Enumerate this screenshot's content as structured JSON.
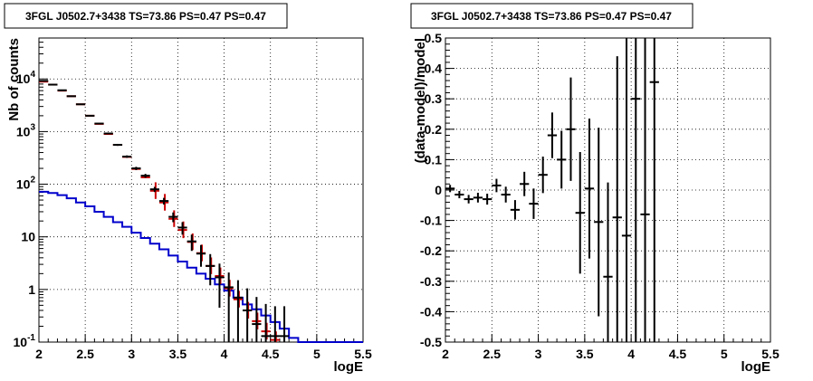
{
  "chart_data": [
    {
      "type": "line",
      "title": "3FGL J0502.7+3438 TS=73.86 PS=0.47 PS=0.47",
      "xlabel": "logE",
      "ylabel": "Nb of counts",
      "xlim": [
        2,
        5.5
      ],
      "ylim": [
        0.1,
        60000
      ],
      "yscale": "log",
      "grid": true,
      "x_ticks": [
        "2",
        "2.5",
        "3",
        "3.5",
        "4",
        "4.5",
        "5",
        "5.5"
      ],
      "y_ticks": [
        "10^-1",
        "1",
        "10",
        "10^2",
        "10^3",
        "10^4"
      ],
      "colors": {
        "data": "#000000",
        "model": "#cc0000",
        "background": "#0000cc"
      },
      "series": [
        {
          "x": [
            2.05,
            2.15,
            2.25,
            2.35,
            2.45,
            2.55,
            2.65,
            2.75,
            2.85,
            2.95,
            3.05,
            3.15,
            3.25,
            3.35,
            3.45,
            3.55,
            3.65,
            3.75,
            3.85,
            3.95,
            4.05,
            4.15,
            4.25,
            4.35,
            4.45,
            4.55,
            4.65
          ],
          "values": [
            9200,
            7800,
            6100,
            4700,
            3300,
            2000,
            1420,
            920,
            560,
            335,
            200,
            145,
            80,
            48,
            24,
            15,
            8.2,
            4.8,
            2.8,
            1.7,
            1.1,
            0.7,
            0.4,
            0.22,
            0.13,
            0.13,
            0.13
          ],
          "yerr_low": [
            100,
            90,
            80,
            70,
            57,
            45,
            38,
            30,
            24,
            18,
            14,
            12,
            9,
            7,
            5,
            4,
            2.8,
            2.1,
            1.6,
            1.25,
            1.0,
            0.7,
            0.4,
            0.22,
            0.13,
            0.13,
            0.13
          ],
          "yerr_high": [
            100,
            90,
            80,
            70,
            57,
            45,
            38,
            30,
            24,
            18,
            14,
            12,
            9,
            7,
            5,
            4,
            2.8,
            2.2,
            1.9,
            1.4,
            1.0,
            0.8,
            0.65,
            0.5,
            0.4,
            0.35,
            0.35
          ]
        },
        {
          "x": [
            2.05,
            2.15,
            2.25,
            2.35,
            2.45,
            2.55,
            2.65,
            2.75,
            2.85,
            2.95,
            3.05,
            3.15,
            3.25,
            3.35,
            3.45,
            3.55,
            3.65,
            3.75,
            3.85,
            3.95,
            4.05,
            4.15,
            4.25,
            4.35,
            4.45,
            4.55,
            4.65
          ],
          "values": [
            8900,
            7800,
            6000,
            4700,
            3300,
            2000,
            1400,
            900,
            560,
            330,
            195,
            135,
            75,
            45,
            22,
            13.5,
            8.0,
            4.9,
            2.8,
            1.8,
            1.05,
            0.65,
            0.4,
            0.25,
            0.16,
            0.11,
            0.08
          ]
        },
        {
          "x": [
            2.0,
            2.1,
            2.2,
            2.3,
            2.4,
            2.5,
            2.6,
            2.7,
            2.8,
            2.9,
            3.0,
            3.1,
            3.2,
            3.3,
            3.4,
            3.5,
            3.6,
            3.7,
            3.8,
            3.9,
            4.0,
            4.1,
            4.2,
            4.3,
            4.4,
            4.5,
            4.6,
            4.7,
            4.8
          ],
          "values": [
            72,
            68,
            62,
            54,
            45,
            38,
            30,
            24,
            19,
            15.5,
            12,
            9.5,
            7.4,
            5.8,
            4.4,
            3.4,
            2.6,
            2.0,
            1.6,
            1.25,
            0.95,
            0.7,
            0.52,
            0.42,
            0.32,
            0.24,
            0.18,
            0.12,
            0.1
          ]
        }
      ]
    },
    {
      "type": "scatter",
      "title": "3FGL J0502.7+3438 TS=73.86 PS=0.47 PS=0.47",
      "xlabel": "logE",
      "ylabel": "(data-model)/model",
      "xlim": [
        2,
        5.5
      ],
      "ylim": [
        -0.5,
        0.5
      ],
      "grid": true,
      "x_ticks": [
        "2",
        "2.5",
        "3",
        "3.5",
        "4",
        "4.5",
        "5",
        "5.5"
      ],
      "y_ticks": [
        "-0.5",
        "-0.4",
        "-0.3",
        "-0.2",
        "-0.1",
        "0",
        "0.1",
        "0.2",
        "0.3",
        "0.4",
        "0.5"
      ],
      "series": [
        {
          "x": [
            2.05,
            2.15,
            2.25,
            2.35,
            2.45,
            2.55,
            2.65,
            2.75,
            2.85,
            2.95,
            3.05,
            3.15,
            3.25,
            3.35,
            3.45,
            3.55,
            3.65,
            3.75,
            3.85,
            3.95,
            4.05,
            4.15,
            4.25
          ],
          "values": [
            0.005,
            -0.015,
            -0.03,
            -0.025,
            -0.03,
            0.015,
            -0.015,
            -0.065,
            0.02,
            -0.045,
            0.05,
            0.18,
            0.1,
            0.2,
            -0.075,
            0.005,
            -0.105,
            -0.285,
            -0.09,
            -0.15,
            0.3,
            -0.08,
            0.355
          ],
          "yerr": [
            0.012,
            0.012,
            0.014,
            0.016,
            0.018,
            0.022,
            0.026,
            0.032,
            0.04,
            0.05,
            0.06,
            0.075,
            0.095,
            0.17,
            0.2,
            0.23,
            0.31,
            0.31,
            0.53,
            0.65,
            0.8,
            0.9,
            1.0
          ]
        }
      ]
    }
  ]
}
